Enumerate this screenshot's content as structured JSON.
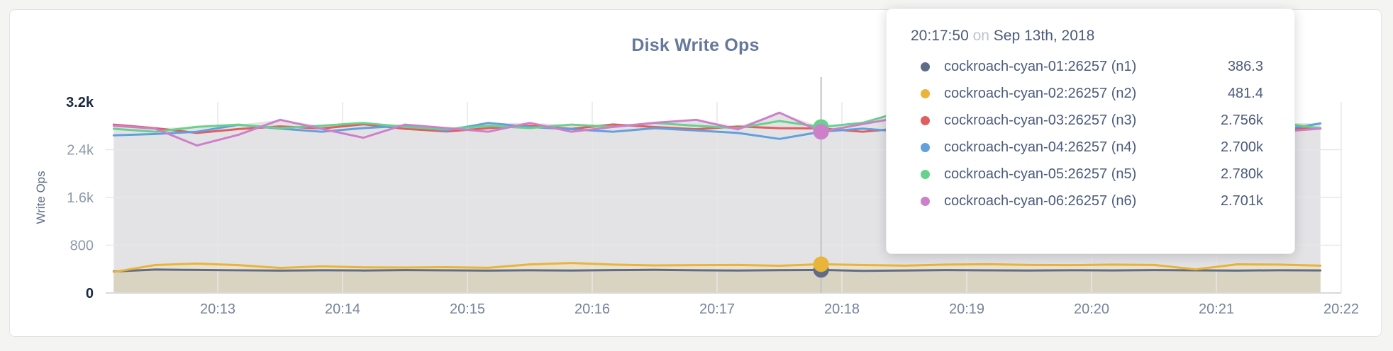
{
  "title": "Disk Write Ops",
  "chart_data": {
    "type": "line",
    "title": "Disk Write Ops",
    "xlabel": "",
    "ylabel": "Write Ops",
    "ylim": [
      0,
      3200
    ],
    "grid": true,
    "legend_position": "hover-tooltip",
    "x_seconds_after_20_00": [
      730,
      750,
      770,
      790,
      810,
      830,
      850,
      870,
      890,
      910,
      930,
      950,
      970,
      990,
      1010,
      1030,
      1050,
      1070,
      1090,
      1110,
      1130,
      1150,
      1170,
      1190,
      1210,
      1230,
      1250,
      1270,
      1290,
      1310
    ],
    "x_ticks": [
      {
        "sec": 780,
        "label": "20:13"
      },
      {
        "sec": 840,
        "label": "20:14"
      },
      {
        "sec": 900,
        "label": "20:15"
      },
      {
        "sec": 960,
        "label": "20:16"
      },
      {
        "sec": 1020,
        "label": "20:17"
      },
      {
        "sec": 1080,
        "label": "20:18"
      },
      {
        "sec": 1140,
        "label": "20:19"
      },
      {
        "sec": 1200,
        "label": "20:20"
      },
      {
        "sec": 1260,
        "label": "20:21"
      },
      {
        "sec": 1320,
        "label": "20:22"
      }
    ],
    "y_ticks": [
      {
        "value": 0,
        "label": "0"
      },
      {
        "value": 800,
        "label": "800"
      },
      {
        "value": 1600,
        "label": "1.6k"
      },
      {
        "value": 2400,
        "label": "2.4k"
      },
      {
        "value": 3200,
        "label": "3.2k"
      }
    ],
    "series": [
      {
        "name": "cockroach-cyan-01:26257 (n1)",
        "color": "#5f6c87",
        "values": [
          360,
          392,
          386,
          380,
          375,
          381,
          377,
          384,
          379,
          375,
          381,
          377,
          384,
          388,
          381,
          376,
          382,
          386.3,
          370,
          377,
          383,
          380,
          376,
          381,
          378,
          383,
          380,
          375,
          381,
          378
        ]
      },
      {
        "name": "cockroach-cyan-02:26257 (n2)",
        "color": "#e8b43a",
        "values": [
          352,
          468,
          492,
          466,
          420,
          446,
          430,
          426,
          432,
          422,
          478,
          502,
          476,
          462,
          466,
          470,
          456,
          481.4,
          468,
          458,
          476,
          482,
          470,
          466,
          476,
          470,
          395,
          480,
          476,
          458
        ]
      },
      {
        "name": "cockroach-cyan-03:26257 (n3)",
        "color": "#e05e5e",
        "values": [
          2820,
          2760,
          2680,
          2745,
          2790,
          2755,
          2825,
          2750,
          2705,
          2760,
          2800,
          2748,
          2822,
          2780,
          2742,
          2788,
          2760,
          2756,
          2700,
          2762,
          2724,
          2780,
          2752,
          2818,
          2760,
          2702,
          2750,
          2782,
          2742,
          2760
        ]
      },
      {
        "name": "cockroach-cyan-04:26257 (n4)",
        "color": "#62a0dc",
        "values": [
          2640,
          2662,
          2700,
          2818,
          2752,
          2700,
          2762,
          2800,
          2722,
          2848,
          2780,
          2742,
          2700,
          2760,
          2722,
          2680,
          2580,
          2700,
          2752,
          2700,
          2732,
          2760,
          2700,
          2652,
          2700,
          2742,
          2700,
          2762,
          2722,
          2840
        ]
      },
      {
        "name": "cockroach-cyan-05:26257 (n5)",
        "color": "#67d18d",
        "values": [
          2750,
          2700,
          2782,
          2820,
          2760,
          2802,
          2848,
          2780,
          2742,
          2800,
          2762,
          2820,
          2782,
          2848,
          2800,
          2760,
          2880,
          2780,
          2850,
          3050,
          2800,
          2840,
          2782,
          2752,
          2800,
          2762,
          2820,
          2782,
          2848,
          2760
        ]
      },
      {
        "name": "cockroach-cyan-06:26257 (n6)",
        "color": "#cd80c9",
        "values": [
          2800,
          2752,
          2470,
          2650,
          2900,
          2748,
          2600,
          2820,
          2762,
          2700,
          2848,
          2700,
          2780,
          2850,
          2900,
          2740,
          3020,
          2701,
          2830,
          2950,
          2700,
          2752,
          2800,
          2702,
          2762,
          2722,
          2900,
          2652,
          2700,
          2752
        ]
      }
    ]
  },
  "tooltip": {
    "time": "20:17:50",
    "preposition": "on",
    "date": "Sep 13th, 2018",
    "hover_index": 17,
    "rows": [
      {
        "name": "cockroach-cyan-01:26257 (n1)",
        "value": "386.3",
        "color": "#5f6c87"
      },
      {
        "name": "cockroach-cyan-02:26257 (n2)",
        "value": "481.4",
        "color": "#e8b43a"
      },
      {
        "name": "cockroach-cyan-03:26257 (n3)",
        "value": "2.756k",
        "color": "#e05e5e"
      },
      {
        "name": "cockroach-cyan-04:26257 (n4)",
        "value": "2.700k",
        "color": "#62a0dc"
      },
      {
        "name": "cockroach-cyan-05:26257 (n5)",
        "value": "2.780k",
        "color": "#67d18d"
      },
      {
        "name": "cockroach-cyan-06:26257 (n6)",
        "value": "2.701k",
        "color": "#cd80c9"
      }
    ]
  },
  "colors": {
    "page_bg": "#f4f4f3",
    "card_bg": "#ffffff",
    "card_border": "#e3e3e3",
    "title": "#66789b",
    "fill_top": "#e3e3e6",
    "fill_yellow_band": "#eae2cc",
    "fill_slate_band": "#d9d3c2",
    "grid": "#e7e7e7",
    "axis_line": "#dadada",
    "hover_line": "#c2c2c2",
    "tick_label": "#8e99ab",
    "tick_label_strong": "#1c2840",
    "x_tick_label": "#76839b",
    "tooltip_text": "#4c5b7c",
    "tooltip_muted": "#bdc3cd"
  }
}
